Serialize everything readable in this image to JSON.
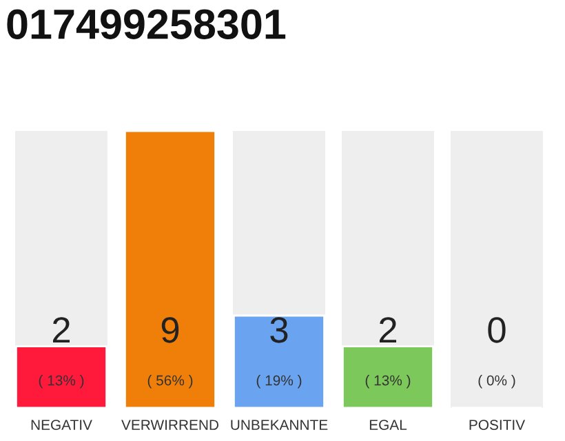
{
  "chart_data": {
    "type": "bar",
    "title": "017499258301",
    "categories": [
      "NEGATIV",
      "VERWIRREND",
      "UNBEKANNTE",
      "EGAL",
      "POSITIV"
    ],
    "values": [
      2,
      9,
      3,
      2,
      0
    ],
    "colors": [
      "#ff1a3c",
      "#f07f09",
      "#6aa3f0",
      "#7dc85a",
      null
    ],
    "data_labels": true,
    "annotations": [
      "( 13% )",
      "( 56% )",
      "( 19% )",
      "( 13% )",
      "( 0% )"
    ],
    "grid": false,
    "legend": false
  }
}
